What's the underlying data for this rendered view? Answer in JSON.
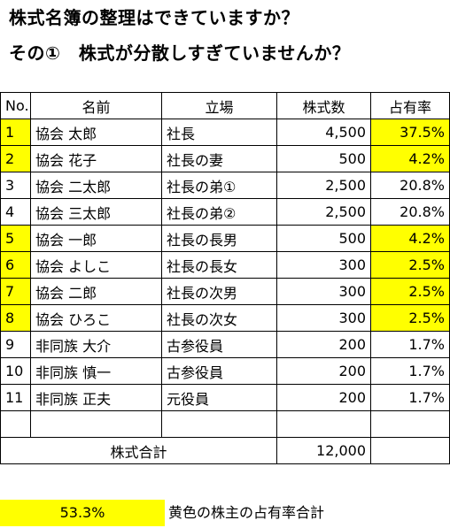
{
  "titles": {
    "line1": "株式名簿の整理はできていますか？",
    "line2": "その①　株式が分散しすぎていませんか？"
  },
  "table": {
    "headers": [
      "No.",
      "名前",
      "立場",
      "株式数",
      "占有率"
    ],
    "rows": [
      {
        "no": "1",
        "name": "協会 太郎",
        "role": "社長",
        "shares": "4,500",
        "ratio": "37.5%",
        "highlight": true
      },
      {
        "no": "2",
        "name": "協会 花子",
        "role": "社長の妻",
        "shares": "500",
        "ratio": "4.2%",
        "highlight": true
      },
      {
        "no": "3",
        "name": "協会 二太郎",
        "role": "社長の弟①",
        "shares": "2,500",
        "ratio": "20.8%",
        "highlight": false
      },
      {
        "no": "4",
        "name": "協会 三太郎",
        "role": "社長の弟②",
        "shares": "2,500",
        "ratio": "20.8%",
        "highlight": false
      },
      {
        "no": "5",
        "name": "協会 一郎",
        "role": "社長の長男",
        "shares": "500",
        "ratio": "4.2%",
        "highlight": true
      },
      {
        "no": "6",
        "name": "協会 よしこ",
        "role": "社長の長女",
        "shares": "300",
        "ratio": "2.5%",
        "highlight": true
      },
      {
        "no": "7",
        "name": "協会 二郎",
        "role": "社長の次男",
        "shares": "300",
        "ratio": "2.5%",
        "highlight": true
      },
      {
        "no": "8",
        "name": "協会 ひろこ",
        "role": "社長の次女",
        "shares": "300",
        "ratio": "2.5%",
        "highlight": true
      },
      {
        "no": "9",
        "name": "非同族 大介",
        "role": "古参役員",
        "shares": "200",
        "ratio": "1.7%",
        "highlight": false
      },
      {
        "no": "10",
        "name": "非同族 慎一",
        "role": "古参役員",
        "shares": "200",
        "ratio": "1.7%",
        "highlight": false
      },
      {
        "no": "11",
        "name": "非同族 正夫",
        "role": "元役員",
        "shares": "200",
        "ratio": "1.7%",
        "highlight": false
      }
    ],
    "total_label": "株式合計",
    "total_shares": "12,000"
  },
  "footer": {
    "value": "53.3%",
    "label": "黄色の株主の占有率合計"
  },
  "colors": {
    "highlight": "#ffff00"
  }
}
